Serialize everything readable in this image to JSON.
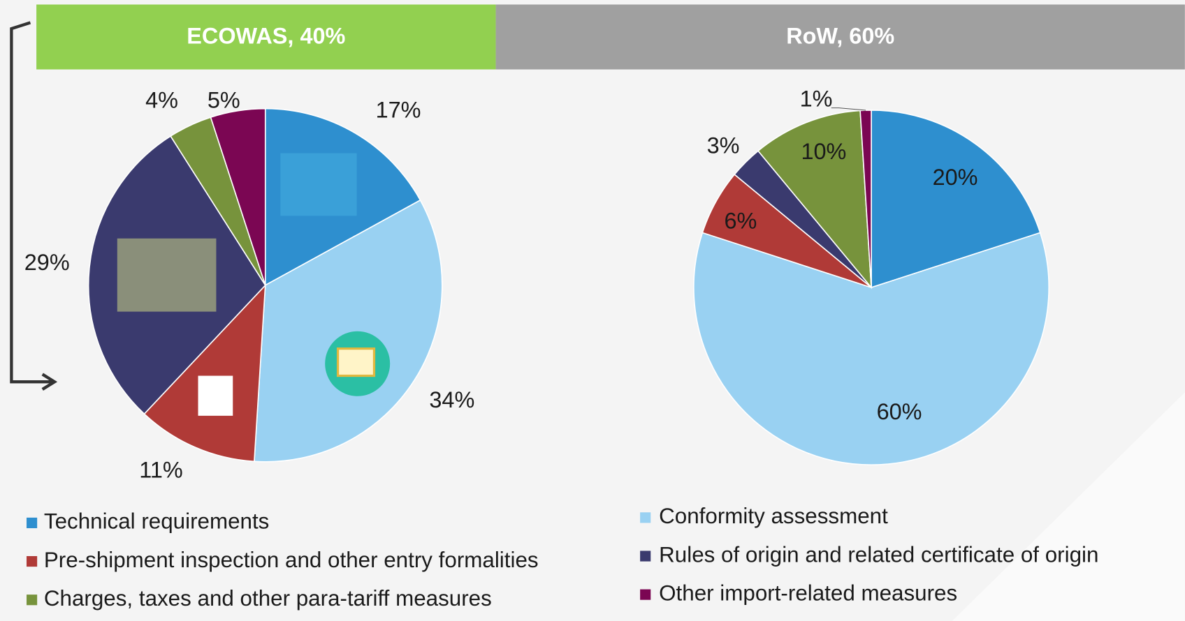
{
  "legend": {
    "categories": [
      "Technical requirements",
      "Conformity assessment",
      "Pre-shipment inspection and other entry formalities",
      "Rules of origin and related certificate of origin",
      "Charges, taxes and other para-tariff measures",
      "Other import-related measures"
    ],
    "colors": [
      "#2e8fcf",
      "#99d1f2",
      "#b03a37",
      "#3a3a6e",
      "#77933c",
      "#7b0653"
    ]
  },
  "chart_data": [
    {
      "type": "pie",
      "title": "ECOWAS, 40%",
      "values": [
        17,
        34,
        11,
        29,
        4,
        5
      ],
      "value_labels": [
        "17%",
        "34%",
        "11%",
        "29%",
        "4%",
        "5%"
      ]
    },
    {
      "type": "pie",
      "title": "RoW, 60%",
      "values": [
        20,
        60,
        6,
        3,
        10,
        1
      ],
      "value_labels": [
        "20%",
        "60%",
        "6%",
        "3%",
        "10%",
        "1%"
      ]
    }
  ]
}
